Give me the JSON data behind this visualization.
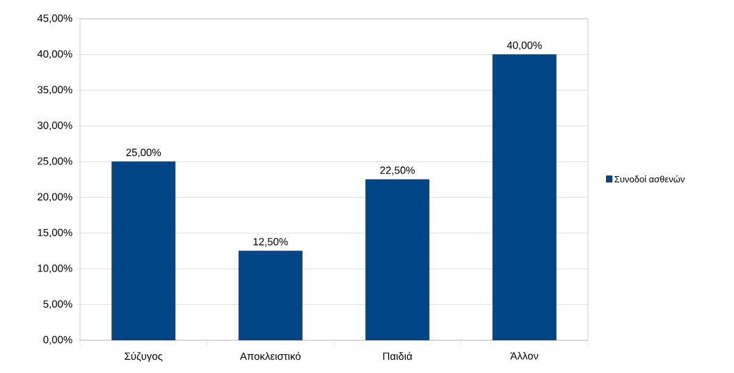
{
  "chart_data": {
    "type": "bar",
    "categories": [
      "Σύζυγος",
      "Αποκλειστικό",
      "Παιδιά",
      "Άλλον"
    ],
    "series": [
      {
        "name": "Συνοδοί ασθενών",
        "color": "#004586",
        "values": [
          25,
          12.5,
          22.5,
          40
        ],
        "value_labels": [
          "25,00%",
          "12,50%",
          "22,50%",
          "40,00%"
        ]
      }
    ],
    "ylim": [
      0,
      45
    ],
    "yticks": [
      {
        "value": 0,
        "label": "0,00%"
      },
      {
        "value": 5,
        "label": "5,00%"
      },
      {
        "value": 10,
        "label": "10,00%"
      },
      {
        "value": 15,
        "label": "15,00%"
      },
      {
        "value": 20,
        "label": "20,00%"
      },
      {
        "value": 25,
        "label": "25,00%"
      },
      {
        "value": 30,
        "label": "30,00%"
      },
      {
        "value": 35,
        "label": "35,00%"
      },
      {
        "value": 40,
        "label": "40,00%"
      },
      {
        "value": 45,
        "label": "45,00%"
      }
    ],
    "grid": "y",
    "legend": "right"
  }
}
